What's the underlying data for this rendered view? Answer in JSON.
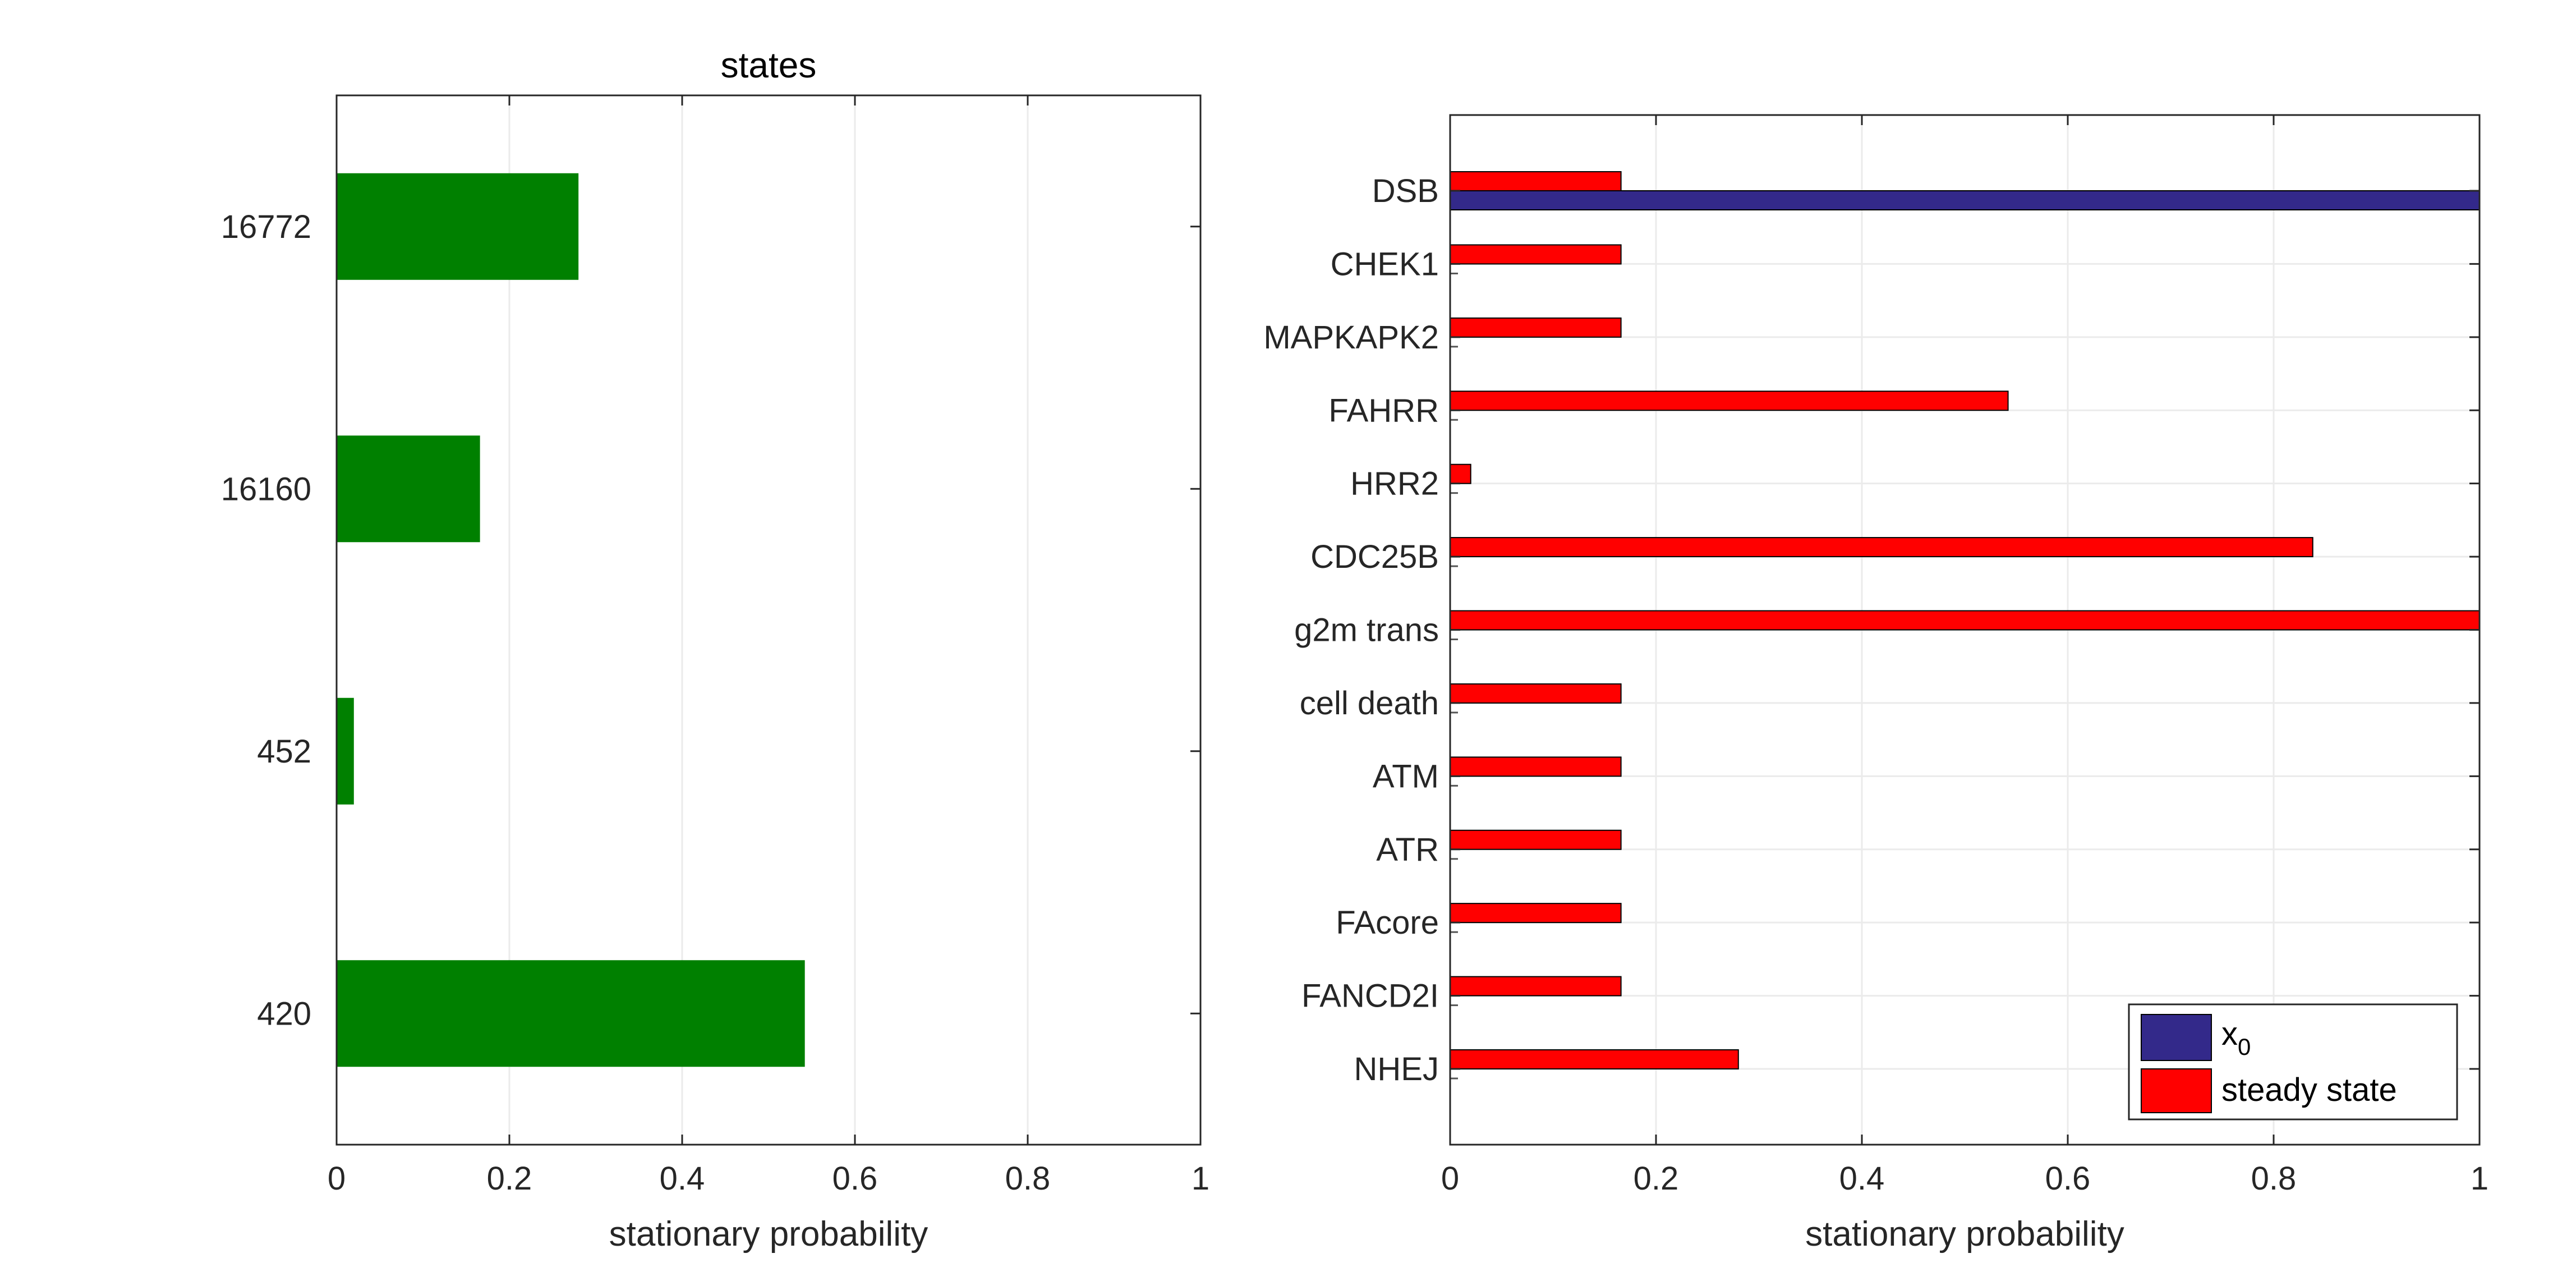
{
  "chart_data": [
    {
      "type": "bar",
      "orientation": "horizontal",
      "title": "states",
      "xlabel": "stationary probability",
      "ylabel": "",
      "xlim": [
        0,
        1
      ],
      "xticks": [
        "0",
        "0.2",
        "0.4",
        "0.6",
        "0.8",
        "1"
      ],
      "categories": [
        "16772",
        "16160",
        "452",
        "420"
      ],
      "values": [
        0.28,
        0.166,
        0.02,
        0.542
      ],
      "grid": true,
      "colors": {
        "bar": "#008000"
      }
    },
    {
      "type": "bar",
      "orientation": "horizontal",
      "title": "",
      "xlabel": "stationary probability",
      "ylabel": "",
      "xlim": [
        0,
        1
      ],
      "xticks": [
        "0",
        "0.2",
        "0.4",
        "0.6",
        "0.8",
        "1"
      ],
      "categories": [
        "DSB",
        "CHEK1",
        "MAPKAPK2",
        "FAHRR",
        "HRR2",
        "CDC25B",
        "g2m trans",
        "cell death",
        "ATM",
        "ATR",
        "FAcore",
        "FANCD2I",
        "NHEJ"
      ],
      "series": [
        {
          "name": "x",
          "subscript": "0",
          "color": "#33298a",
          "values": [
            1,
            0,
            0,
            0,
            0,
            0,
            0,
            0,
            0,
            0,
            0,
            0,
            0
          ]
        },
        {
          "name": "steady state",
          "color": "#ff0000",
          "values": [
            0.166,
            0.166,
            0.166,
            0.542,
            0.02,
            0.838,
            1.0,
            0.166,
            0.166,
            0.166,
            0.166,
            0.166,
            0.28
          ]
        }
      ],
      "grid": true,
      "legend": "bottom-right"
    }
  ]
}
